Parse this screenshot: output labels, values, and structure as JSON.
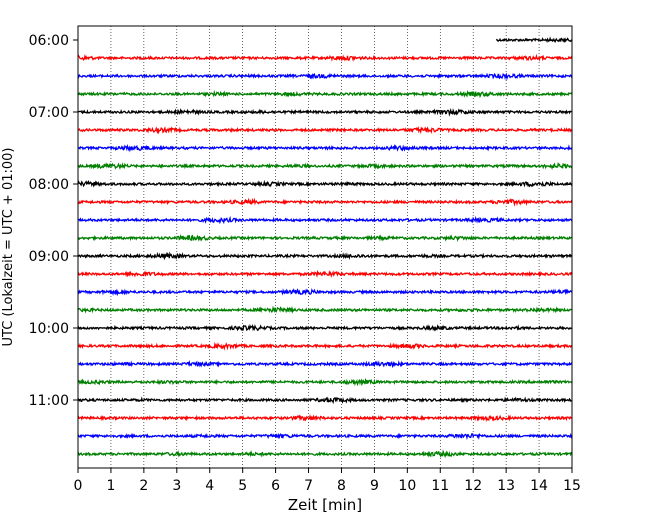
{
  "chart_data": {
    "type": "line",
    "title": "",
    "xlabel": "Zeit  [min]",
    "ylabel": "UTC (Lokalzeit = UTC + 01:00)",
    "xlim": [
      0,
      15
    ],
    "x_ticks": [
      "0",
      "1",
      "2",
      "3",
      "4",
      "5",
      "6",
      "7",
      "8",
      "9",
      "10",
      "11",
      "12",
      "13",
      "14",
      "15"
    ],
    "y_ticks": [
      "06:00",
      "07:00",
      "08:00",
      "09:00",
      "10:00",
      "11:00"
    ],
    "grid": "vertical dotted at each minute",
    "trace_interval_minutes": 15,
    "colors": [
      "#000000",
      "#ff0000",
      "#0000ff",
      "#008000"
    ],
    "traces": [
      {
        "start": "06:00",
        "color": "#000000",
        "x_start": 12.7
      },
      {
        "start": "06:15",
        "color": "#ff0000"
      },
      {
        "start": "06:30",
        "color": "#0000ff"
      },
      {
        "start": "06:45",
        "color": "#008000"
      },
      {
        "start": "07:00",
        "color": "#000000"
      },
      {
        "start": "07:15",
        "color": "#ff0000"
      },
      {
        "start": "07:30",
        "color": "#0000ff"
      },
      {
        "start": "07:45",
        "color": "#008000"
      },
      {
        "start": "08:00",
        "color": "#000000"
      },
      {
        "start": "08:15",
        "color": "#ff0000"
      },
      {
        "start": "08:30",
        "color": "#0000ff"
      },
      {
        "start": "08:45",
        "color": "#008000"
      },
      {
        "start": "09:00",
        "color": "#000000"
      },
      {
        "start": "09:15",
        "color": "#ff0000"
      },
      {
        "start": "09:30",
        "color": "#0000ff"
      },
      {
        "start": "09:45",
        "color": "#008000"
      },
      {
        "start": "10:00",
        "color": "#000000"
      },
      {
        "start": "10:15",
        "color": "#ff0000"
      },
      {
        "start": "10:30",
        "color": "#0000ff"
      },
      {
        "start": "10:45",
        "color": "#008000"
      },
      {
        "start": "11:00",
        "color": "#000000"
      },
      {
        "start": "11:15",
        "color": "#ff0000"
      },
      {
        "start": "11:30",
        "color": "#0000ff"
      },
      {
        "start": "11:45",
        "color": "#008000"
      }
    ]
  }
}
